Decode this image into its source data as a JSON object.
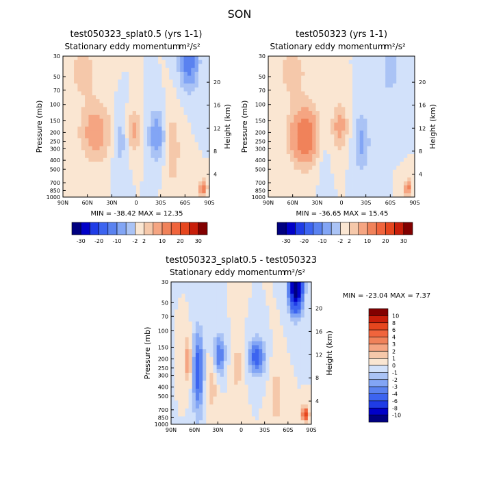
{
  "figure": {
    "title": "SON"
  },
  "chart_data": [
    {
      "type": "heatmap",
      "title": "test050323_splat0.5 (yrs 1-1)",
      "subtitle": "Stationary eddy momentum",
      "units": "m²/s²",
      "xlabel": "",
      "ylabel": "Pressure (mb)",
      "y2label": "Height (km)",
      "xticks": [
        "90N",
        "60N",
        "30N",
        "0",
        "30S",
        "60S",
        "90S"
      ],
      "xvalues": [
        90,
        60,
        30,
        0,
        -30,
        -60,
        -90
      ],
      "yticks": [
        "30",
        "50",
        "70",
        "100",
        "150",
        "200",
        "250",
        "300",
        "400",
        "500",
        "700",
        "850",
        "1000"
      ],
      "yvalues": [
        30,
        50,
        70,
        100,
        150,
        200,
        250,
        300,
        400,
        500,
        700,
        850,
        1000
      ],
      "y2ticks": [
        "20",
        "16",
        "12",
        "8",
        "4"
      ],
      "y2values": [
        20,
        16,
        12,
        8,
        4
      ],
      "ylim": [
        1000,
        30
      ],
      "min_label": "MIN = -38.42   MAX =  12.35",
      "min": -38.42,
      "max": 12.35,
      "colorbar": {
        "orientation": "horizontal",
        "labels": [
          "-30",
          "-20",
          "-10",
          "-2",
          "2",
          "10",
          "20",
          "30"
        ],
        "levels": [
          -30,
          -25,
          -20,
          -15,
          -10,
          -5,
          -2,
          2,
          5,
          10,
          15,
          20,
          25,
          30
        ]
      },
      "features": [
        {
          "lat": 50,
          "p": 200,
          "amp": 8,
          "slat": 12,
          "sp": 0.45
        },
        {
          "lat": 2,
          "p": 190,
          "amp": 6,
          "slat": 5,
          "sp": 0.35
        },
        {
          "lat": -25,
          "p": 220,
          "amp": -8,
          "slat": 6,
          "sp": 0.4
        },
        {
          "lat": -65,
          "p": 35,
          "amp": -14,
          "slat": 7,
          "sp": 0.4
        },
        {
          "lat": -45,
          "p": 300,
          "amp": 4,
          "slat": 6,
          "sp": 0.6
        },
        {
          "lat": 65,
          "p": 45,
          "amp": 3,
          "slat": 14,
          "sp": 0.5
        },
        {
          "lat": -82,
          "p": 800,
          "amp": 14,
          "slat": 3,
          "sp": 0.12
        },
        {
          "lat": 20,
          "p": 250,
          "amp": -3,
          "slat": 6,
          "sp": 0.5
        }
      ]
    },
    {
      "type": "heatmap",
      "title": "test050323 (yrs 1-1)",
      "subtitle": "Stationary eddy momentum",
      "units": "m²/s²",
      "xlabel": "",
      "ylabel": "Pressure (mb)",
      "y2label": "Height (km)",
      "xticks": [
        "90N",
        "60N",
        "30N",
        "0",
        "30S",
        "60S",
        "90S"
      ],
      "xvalues": [
        90,
        60,
        30,
        0,
        -30,
        -60,
        -90
      ],
      "yticks": [
        "30",
        "50",
        "70",
        "100",
        "150",
        "200",
        "250",
        "300",
        "400",
        "500",
        "700",
        "850",
        "1000"
      ],
      "yvalues": [
        30,
        50,
        70,
        100,
        150,
        200,
        250,
        300,
        400,
        500,
        700,
        850,
        1000
      ],
      "y2ticks": [
        "20",
        "16",
        "12",
        "8",
        "4"
      ],
      "y2values": [
        20,
        16,
        12,
        8,
        4
      ],
      "ylim": [
        1000,
        30
      ],
      "min_label": "MIN = -36.65   MAX =  15.45",
      "min": -36.65,
      "max": 15.45,
      "colorbar": {
        "orientation": "horizontal",
        "labels": [
          "-30",
          "-20",
          "-10",
          "-2",
          "2",
          "10",
          "20",
          "30"
        ],
        "levels": [
          -30,
          -25,
          -20,
          -15,
          -10,
          -5,
          -2,
          2,
          5,
          10,
          15,
          20,
          25,
          30
        ]
      },
      "features": [
        {
          "lat": 45,
          "p": 220,
          "amp": 15,
          "slat": 12,
          "sp": 0.45
        },
        {
          "lat": 2,
          "p": 170,
          "amp": 7,
          "slat": 6,
          "sp": 0.35
        },
        {
          "lat": -25,
          "p": 250,
          "amp": -6,
          "slat": 6,
          "sp": 0.45
        },
        {
          "lat": -60,
          "p": 40,
          "amp": -5,
          "slat": 6,
          "sp": 0.4
        },
        {
          "lat": 60,
          "p": 45,
          "amp": 3,
          "slat": 14,
          "sp": 0.5
        },
        {
          "lat": -82,
          "p": 800,
          "amp": 12,
          "slat": 3,
          "sp": 0.12
        },
        {
          "lat": 25,
          "p": 260,
          "amp": -2,
          "slat": 6,
          "sp": 0.5
        }
      ]
    },
    {
      "type": "heatmap",
      "title": "test050323_splat0.5 - test050323",
      "subtitle": "Stationary eddy momentum",
      "units": "m²/s²",
      "xlabel": "",
      "ylabel": "Pressure (mb)",
      "y2label": "Height (km)",
      "xticks": [
        "90N",
        "60N",
        "30N",
        "0",
        "30S",
        "60S",
        "90S"
      ],
      "xvalues": [
        90,
        60,
        30,
        0,
        -30,
        -60,
        -90
      ],
      "yticks": [
        "30",
        "50",
        "70",
        "100",
        "150",
        "200",
        "250",
        "300",
        "400",
        "500",
        "700",
        "850",
        "1000"
      ],
      "yvalues": [
        30,
        50,
        70,
        100,
        150,
        200,
        250,
        300,
        400,
        500,
        700,
        850,
        1000
      ],
      "y2ticks": [
        "20",
        "16",
        "12",
        "8",
        "4"
      ],
      "y2values": [
        20,
        16,
        12,
        8,
        4
      ],
      "ylim": [
        1000,
        30
      ],
      "min_label": "MIN = -23.04   MAX =   7.37",
      "min": -23.04,
      "max": 7.37,
      "colorbar": {
        "orientation": "vertical",
        "labels": [
          "10",
          "8",
          "6",
          "4",
          "3",
          "2",
          "1",
          "0",
          "-1",
          "-2",
          "-3",
          "-4",
          "-6",
          "-8",
          "-10"
        ],
        "levels": [
          -10,
          -8,
          -6,
          -4,
          -3,
          -2,
          -1,
          0,
          1,
          2,
          3,
          4,
          6,
          8,
          10
        ]
      },
      "features": [
        {
          "lat": 55,
          "p": 280,
          "amp": -5,
          "slat": 5,
          "sp": 0.7
        },
        {
          "lat": 68,
          "p": 210,
          "amp": 3,
          "slat": 3,
          "sp": 0.4
        },
        {
          "lat": 28,
          "p": 180,
          "amp": -4,
          "slat": 5,
          "sp": 0.35
        },
        {
          "lat": -20,
          "p": 190,
          "amp": -5,
          "slat": 7,
          "sp": 0.3
        },
        {
          "lat": -70,
          "p": 35,
          "amp": -12,
          "slat": 6,
          "sp": 0.4
        },
        {
          "lat": 38,
          "p": 400,
          "amp": 1.5,
          "slat": 6,
          "sp": 0.5
        },
        {
          "lat": 5,
          "p": 250,
          "amp": 1.5,
          "slat": 5,
          "sp": 0.5
        },
        {
          "lat": -45,
          "p": 500,
          "amp": 1.5,
          "slat": 5,
          "sp": 0.6
        },
        {
          "lat": -82,
          "p": 780,
          "amp": 7,
          "slat": 3,
          "sp": 0.12
        }
      ]
    }
  ],
  "colors": {
    "negative": [
      "#000080",
      "#0000c8",
      "#1f3ce6",
      "#3c64f0",
      "#5a82f0",
      "#82a5f5",
      "#aac3f5",
      "#d2e1fa"
    ],
    "positive": [
      "#fae6d2",
      "#f5c8aa",
      "#f5a582",
      "#f0825a",
      "#f0643c",
      "#e6461e",
      "#c81e0a",
      "#820000"
    ]
  }
}
